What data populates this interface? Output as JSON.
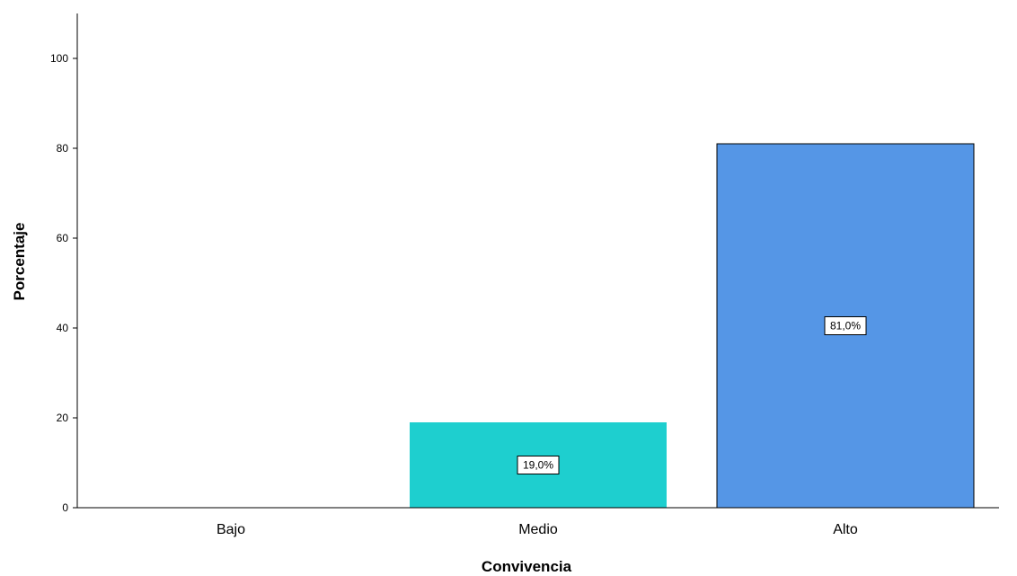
{
  "chart_data": {
    "type": "bar",
    "title": "",
    "xlabel": "Convivencia",
    "ylabel": "Porcentaje",
    "categories": [
      "Bajo",
      "Medio",
      "Alto"
    ],
    "values": [
      0,
      19.0,
      81.0
    ],
    "data_labels": [
      "",
      "19,0%",
      "81,0%"
    ],
    "bar_colors": [
      "#1ecfcf",
      "#1ecfcf",
      "#5596e6"
    ],
    "ylim": [
      0,
      110
    ],
    "yticks": [
      0,
      20,
      40,
      60,
      80,
      100
    ],
    "grid": false,
    "legend": "none"
  }
}
